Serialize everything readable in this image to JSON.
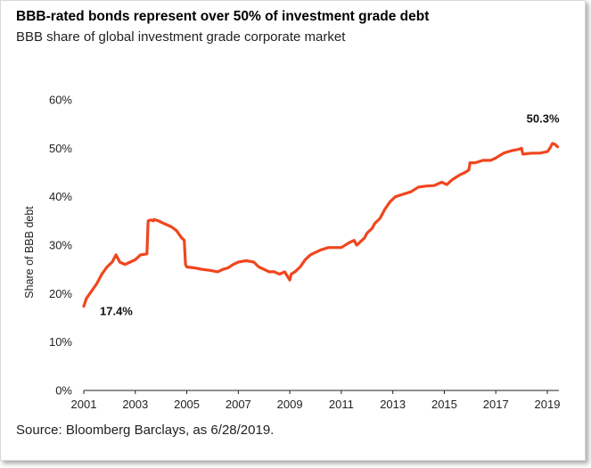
{
  "title": "BBB-rated bonds represent over 50% of investment grade debt",
  "subtitle": "BBB share of global investment grade corporate market",
  "source": "Source: Bloomberg Barclays, as 6/28/2019.",
  "chart_data": {
    "type": "line",
    "title": "BBB-rated bonds represent over 50% of investment grade debt",
    "subtitle": "BBB share of global investment grade corporate market",
    "xlabel": "",
    "ylabel": "Share of BBB debt",
    "xlim": [
      2001,
      2019.45
    ],
    "ylim": [
      0,
      60
    ],
    "x_ticks": [
      2001,
      2003,
      2005,
      2007,
      2009,
      2011,
      2013,
      2015,
      2017,
      2019
    ],
    "x_tick_labels": [
      "2001",
      "2003",
      "2005",
      "2007",
      "2009",
      "2011",
      "2013",
      "2015",
      "2017",
      "2019"
    ],
    "y_ticks": [
      0,
      10,
      20,
      30,
      40,
      50,
      60
    ],
    "y_tick_labels": [
      "0%",
      "10%",
      "20%",
      "30%",
      "40%",
      "50%",
      "60%"
    ],
    "grid": false,
    "line_color": "#f0461e",
    "series": [
      {
        "name": "",
        "x": [
          2001.0,
          2001.1,
          2001.3,
          2001.5,
          2001.7,
          2001.9,
          2002.1,
          2002.25,
          2002.4,
          2002.6,
          2002.8,
          2003.0,
          2003.2,
          2003.45,
          2003.5,
          2003.6,
          2003.7,
          2003.72,
          2003.9,
          2004.1,
          2004.4,
          2004.6,
          2004.8,
          2004.9,
          2004.95,
          2005.0,
          2005.3,
          2005.6,
          2005.9,
          2006.2,
          2006.4,
          2006.6,
          2006.8,
          2007.0,
          2007.3,
          2007.6,
          2007.8,
          2008.0,
          2008.2,
          2008.4,
          2008.6,
          2008.8,
          2009.0,
          2009.05,
          2009.2,
          2009.4,
          2009.6,
          2009.8,
          2010.0,
          2010.2,
          2010.5,
          2010.8,
          2011.0,
          2011.3,
          2011.5,
          2011.6,
          2011.7,
          2011.9,
          2012.0,
          2012.2,
          2012.3,
          2012.5,
          2012.7,
          2012.9,
          2013.1,
          2013.4,
          2013.7,
          2014.0,
          2014.3,
          2014.6,
          2014.9,
          2015.1,
          2015.3,
          2015.6,
          2015.8,
          2015.95,
          2016.0,
          2016.2,
          2016.5,
          2016.8,
          2017.0,
          2017.3,
          2017.6,
          2017.9,
          2018.0,
          2018.05,
          2018.4,
          2018.7,
          2019.0,
          2019.1,
          2019.2,
          2019.3,
          2019.4
        ],
        "y": [
          17.4,
          19.0,
          20.5,
          22.0,
          24.0,
          25.5,
          26.5,
          28.0,
          26.5,
          26.0,
          26.5,
          27.0,
          28.0,
          28.2,
          35.0,
          35.2,
          35.0,
          35.3,
          35.0,
          34.5,
          33.8,
          33.0,
          31.5,
          31.0,
          26.0,
          25.5,
          25.3,
          25.0,
          24.8,
          24.5,
          25.0,
          25.3,
          26.0,
          26.5,
          26.8,
          26.5,
          25.5,
          25.0,
          24.5,
          24.5,
          24.0,
          24.5,
          22.8,
          24.0,
          24.5,
          25.5,
          27.0,
          28.0,
          28.5,
          29.0,
          29.5,
          29.5,
          29.5,
          30.5,
          31.0,
          30.0,
          30.5,
          31.5,
          32.5,
          33.5,
          34.5,
          35.5,
          37.5,
          39.0,
          40.0,
          40.5,
          41.0,
          42.0,
          42.2,
          42.3,
          43.0,
          42.5,
          43.5,
          44.5,
          45.0,
          45.5,
          47.0,
          47.0,
          47.5,
          47.5,
          48.0,
          49.0,
          49.5,
          49.8,
          50.0,
          48.8,
          49.0,
          49.0,
          49.3,
          50.0,
          51.0,
          50.8,
          50.3
        ]
      }
    ],
    "annotations": [
      {
        "text": "17.4%",
        "x": 2001.0,
        "y": 17.4
      },
      {
        "text": "50.3%",
        "x": 2019.4,
        "y": 50.3
      }
    ]
  }
}
